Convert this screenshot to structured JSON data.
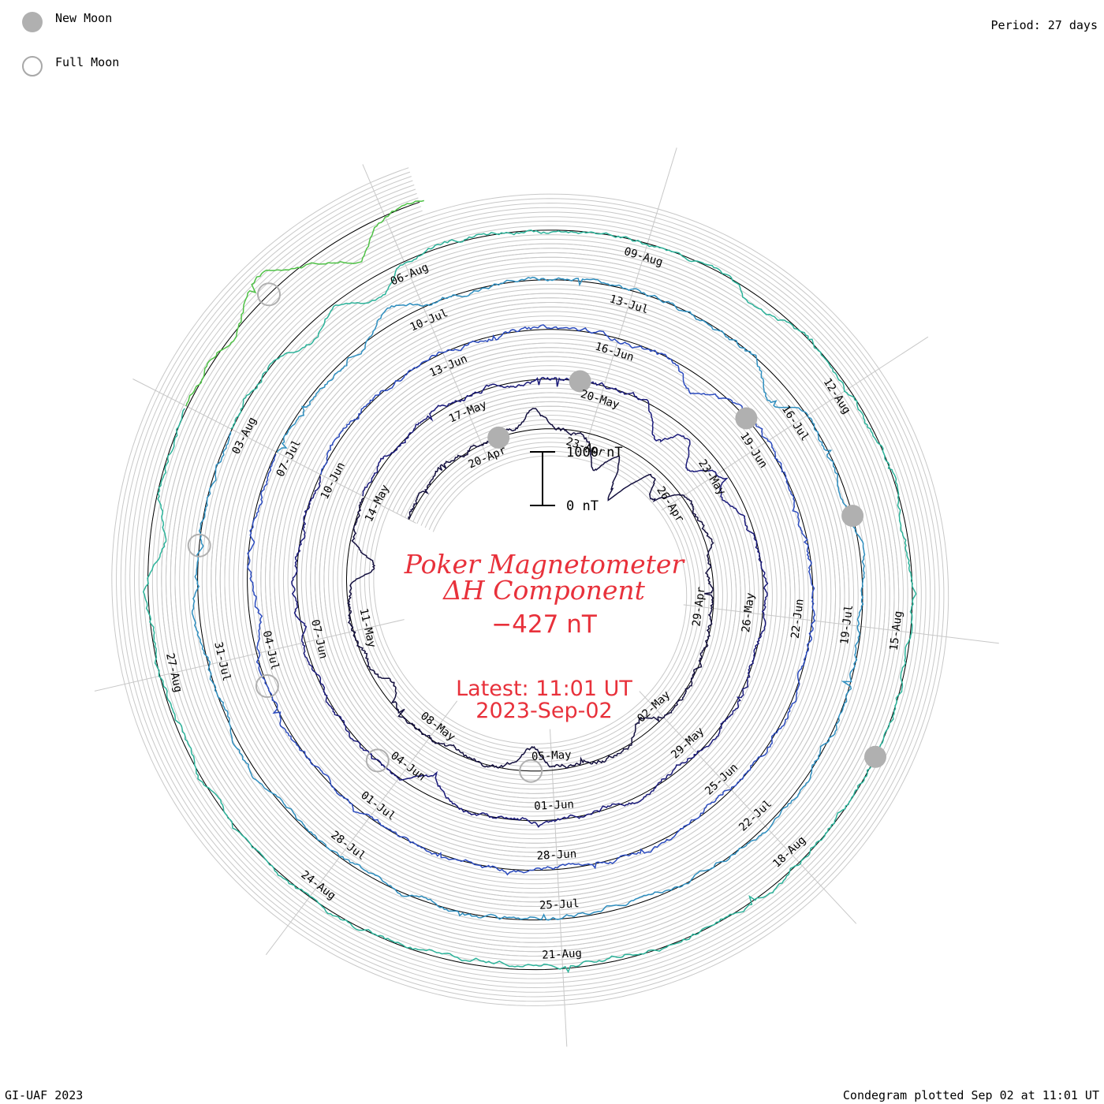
{
  "header": {
    "period": "Period: 27 days",
    "legend": [
      {
        "label": "New Moon",
        "style": "filled",
        "color": "#b0b0b0"
      },
      {
        "label": "Full Moon",
        "style": "outline",
        "color": "#a8a8a8"
      }
    ]
  },
  "footer": {
    "credit": "GI-UAF 2023",
    "plotted": "Condegram plotted Sep 02 at 11:01 UT"
  },
  "center": {
    "title_line1": "Poker Magnetometer",
    "title_line2": "ΔH Component",
    "value": "−427 nT",
    "latest": "Latest: 11:01 UT",
    "date": "2023-Sep-02",
    "scale_top": "1000 nT",
    "scale_bottom": "0 nT"
  },
  "colors": {
    "title": "#e8313b",
    "grid": "#c8c8c8",
    "moon": "#b0b0b0",
    "rotations": [
      "#14103f",
      "#1a1a7a",
      "#2c4cbf",
      "#2f8fc0",
      "#2cb39a",
      "#4fc246",
      "#a8c028",
      "#c8a21e",
      "#c86818",
      "#c81818"
    ]
  },
  "chart_data": {
    "type": "condegram-spiral",
    "period_days": 27,
    "component": "ΔH",
    "units": "nT",
    "start_date": "2023-04-17",
    "end_date": "2023-09-02",
    "scale_bar_nT": [
      0,
      1000
    ],
    "latest_value_nT": -427,
    "date_ticks": [
      "20-Apr",
      "23-Apr",
      "26-Apr",
      "29-Apr",
      "02-May",
      "05-May",
      "08-May",
      "11-May",
      "14-May",
      "17-May",
      "20-May",
      "23-May",
      "26-May",
      "29-May",
      "01-Jun",
      "04-Jun",
      "07-Jun",
      "10-Jun",
      "13-Jun",
      "16-Jun",
      "19-Jun",
      "22-Jun",
      "25-Jun",
      "28-Jun",
      "01-Jul",
      "04-Jul",
      "07-Jul",
      "10-Jul",
      "13-Jul",
      "16-Jul",
      "19-Jul",
      "22-Jul",
      "25-Jul",
      "28-Jul",
      "31-Jul",
      "03-Aug",
      "06-Aug",
      "09-Aug",
      "12-Aug",
      "15-Aug",
      "18-Aug",
      "21-Aug",
      "24-Aug",
      "27-Aug"
    ],
    "new_moons": [
      "2023-04-20",
      "2023-05-19",
      "2023-06-18",
      "2023-07-17",
      "2023-08-16"
    ],
    "full_moons": [
      "2023-05-05",
      "2023-06-04",
      "2023-07-03",
      "2023-08-01",
      "2023-08-31"
    ],
    "disturbance_events_nT": [
      {
        "date": "2023-04-21",
        "peak": 350
      },
      {
        "date": "2023-04-23",
        "peak": -650
      },
      {
        "date": "2023-04-24",
        "peak": -900
      },
      {
        "date": "2023-04-25",
        "peak": -450
      },
      {
        "date": "2023-05-02",
        "peak": -300
      },
      {
        "date": "2023-05-05",
        "peak": -400
      },
      {
        "date": "2023-05-09",
        "peak": -250
      },
      {
        "date": "2023-05-12",
        "peak": -500
      },
      {
        "date": "2023-05-21",
        "peak": -550
      },
      {
        "date": "2023-05-22",
        "peak": -500
      },
      {
        "date": "2023-05-23",
        "peak": -350
      },
      {
        "date": "2023-06-03",
        "peak": -250
      },
      {
        "date": "2023-06-17",
        "peak": -300
      },
      {
        "date": "2023-07-04",
        "peak": -250
      },
      {
        "date": "2023-07-09",
        "peak": 300
      },
      {
        "date": "2023-07-15",
        "peak": -350
      },
      {
        "date": "2023-08-04",
        "peak": -300
      },
      {
        "date": "2023-08-05",
        "peak": -400
      },
      {
        "date": "2023-08-10",
        "peak": -300
      },
      {
        "date": "2023-08-28",
        "peak": -300
      },
      {
        "date": "2023-08-31",
        "peak": 400
      },
      {
        "date": "2023-09-01",
        "peak": -450
      }
    ]
  }
}
